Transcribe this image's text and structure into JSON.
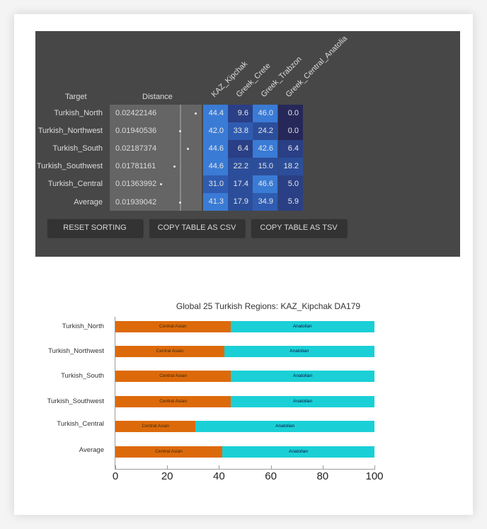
{
  "table": {
    "headers": {
      "target": "Target",
      "distance": "Distance",
      "columns": [
        "KAZ_Kipchak",
        "Greek_Crete",
        "Greek_Trabzon",
        "Greek_Central_Anatolia"
      ]
    },
    "rows": [
      {
        "target": "Turkish_North",
        "distance": "0.02422146",
        "values": [
          "44.4",
          "9.6",
          "46.0",
          "0.0"
        ]
      },
      {
        "target": "Turkish_Northwest",
        "distance": "0.01940536",
        "values": [
          "42.0",
          "33.8",
          "24.2",
          "0.0"
        ]
      },
      {
        "target": "Turkish_South",
        "distance": "0.02187374",
        "values": [
          "44.6",
          "6.4",
          "42.6",
          "6.4"
        ]
      },
      {
        "target": "Turkish_Southwest",
        "distance": "0.01781161",
        "values": [
          "44.6",
          "22.2",
          "15.0",
          "18.2"
        ]
      },
      {
        "target": "Turkish_Central",
        "distance": "0.01363992",
        "values": [
          "31.0",
          "17.4",
          "46.6",
          "5.0"
        ]
      },
      {
        "target": "Average",
        "distance": "0.01939042",
        "values": [
          "41.3",
          "17.9",
          "34.9",
          "5.9"
        ]
      }
    ],
    "buttons": {
      "reset": "RESET SORTING",
      "csv": "COPY TABLE AS CSV",
      "tsv": "COPY TABLE AS TSV"
    },
    "colors": {
      "panel_bg": "#474747",
      "high": "#3a7bd5",
      "mid": "#2c4e9a",
      "low": "#26285a"
    }
  },
  "chart_data": {
    "type": "bar",
    "orientation": "horizontal",
    "stacked": true,
    "title": "Global 25 Turkish Regions: KAZ_Kipchak DA179",
    "categories": [
      "Turkish_North",
      "Turkish_Northwest",
      "Turkish_South",
      "Turkish_Southwest",
      "Turkish_Central",
      "Average"
    ],
    "series": [
      {
        "name": "Central Asian",
        "color": "#dd6a0a",
        "values": [
          44.4,
          42.0,
          44.6,
          44.6,
          31.0,
          41.3
        ]
      },
      {
        "name": "Anatolian",
        "color": "#1ad0d6",
        "values": [
          55.6,
          58.0,
          55.4,
          55.4,
          69.0,
          58.7
        ]
      }
    ],
    "segment_labels": [
      "Central Asian",
      "Anatolian"
    ],
    "xlim": [
      0,
      100
    ],
    "xticks": [
      "0",
      "20",
      "40",
      "60",
      "80",
      "100"
    ],
    "xlabel": "",
    "ylabel": "",
    "grid": false,
    "legend": "none"
  }
}
